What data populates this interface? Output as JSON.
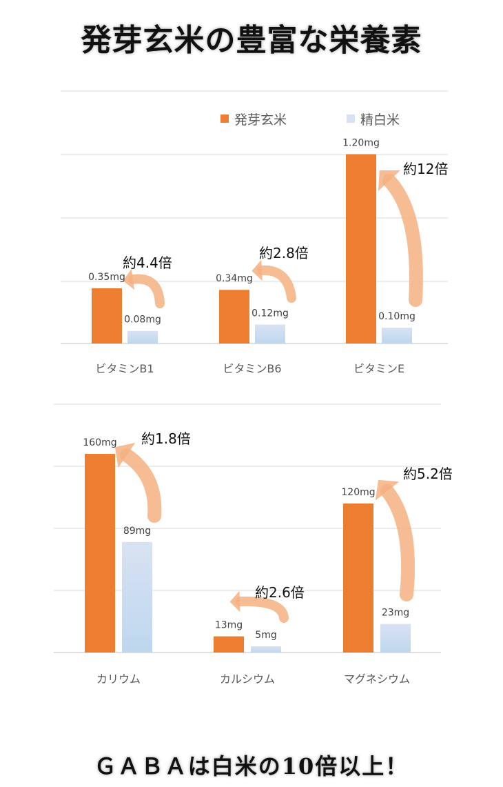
{
  "title": "発芽玄米の豊富な栄養素",
  "footer": "ＧＡＢＡは白米の10倍以上！",
  "colors": {
    "brown_rice": "#ED7D31",
    "white_rice_top": "#D9E2F3",
    "white_rice_bottom": "#BDD7EE",
    "arrow": "#F4B183",
    "grid": "#D9D9D9"
  },
  "legend": [
    "発芽玄米",
    "精白米"
  ],
  "chart_data": [
    {
      "type": "bar",
      "categories": [
        "ビタミンB1",
        "ビタミンB6",
        "ビタミンE"
      ],
      "series": [
        {
          "name": "発芽玄米",
          "values": [
            0.35,
            0.34,
            1.2
          ]
        },
        {
          "name": "精白米",
          "values": [
            0.08,
            0.12,
            0.1
          ]
        }
      ],
      "value_labels": [
        [
          "0.35mg",
          "0.34mg",
          "1.20mg"
        ],
        [
          "0.08mg",
          "0.12mg",
          "0.10mg"
        ]
      ],
      "ratio_labels": [
        "約4.4倍",
        "約2.8倍",
        "約12倍"
      ],
      "ylim": [
        0,
        1.6
      ],
      "grid": true,
      "legend_position": "top"
    },
    {
      "type": "bar",
      "categories": [
        "カリウム",
        "カルシウム",
        "マグネシウム"
      ],
      "series": [
        {
          "values": [
            160,
            13,
            120
          ]
        },
        {
          "values": [
            89,
            5,
            23
          ]
        }
      ],
      "value_labels": [
        [
          "160mg",
          "13mg",
          "120mg"
        ],
        [
          "89mg",
          "5mg",
          "23mg"
        ]
      ],
      "ratio_labels": [
        "約1.8倍",
        "約2.6倍",
        "約5.2倍"
      ],
      "ylim": [
        0,
        200
      ],
      "grid": true
    }
  ]
}
